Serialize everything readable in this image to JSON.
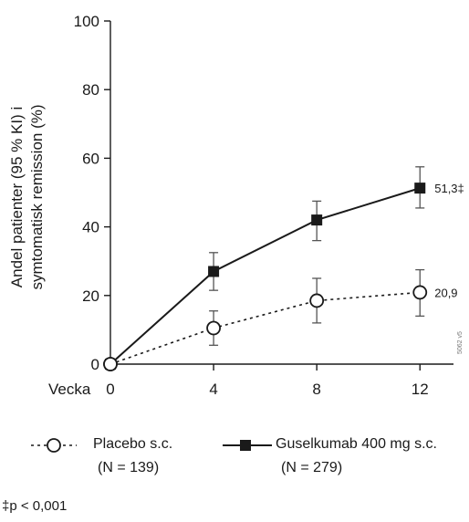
{
  "chart_data": {
    "type": "line",
    "ylabel_line1": "Andel patienter (95 % KI) i",
    "ylabel_line2": "symtomatisk remission (%)",
    "xlabel": "Vecka",
    "x": [
      0,
      4,
      8,
      12
    ],
    "x_ticks": [
      "0",
      "4",
      "8",
      "12"
    ],
    "y_ticks": [
      "0",
      "20",
      "40",
      "60",
      "80",
      "100"
    ],
    "ylim": [
      0,
      100
    ],
    "xlim": [
      0,
      13.3
    ],
    "grid": false,
    "series": [
      {
        "name": "Placebo s.c.",
        "n_label": "(N = 139)",
        "values": [
          0,
          10.5,
          18.5,
          20.9
        ],
        "ci_low": [
          0,
          5.5,
          12,
          14
        ],
        "ci_high": [
          0,
          15.5,
          25,
          27.5
        ],
        "marker": "open-circle",
        "line_style": "dashed",
        "end_label": "20,9"
      },
      {
        "name": "Guselkumab 400 mg s.c.",
        "n_label": "(N = 279)",
        "values": [
          0,
          27,
          42,
          51.3
        ],
        "ci_low": [
          0,
          21.5,
          36,
          45.5
        ],
        "ci_high": [
          0,
          32.5,
          47.5,
          57.5
        ],
        "marker": "filled-square",
        "line_style": "solid",
        "end_label": "51,3‡"
      }
    ],
    "footnote": "‡p < 0,001",
    "side_code": "5062 v5",
    "colors": {
      "ink": "#1a1a1a",
      "background": "#ffffff"
    }
  }
}
